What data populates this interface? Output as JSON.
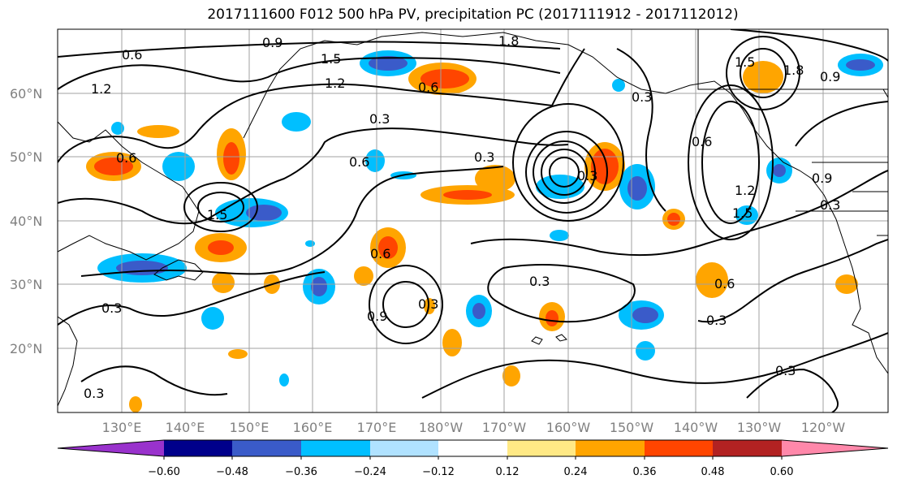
{
  "title": "2017111600 F012 500 hPa PV, precipitation PC (2017111912 - 2017112012)",
  "lat_labels": [
    "60°N",
    "50°N",
    "40°N",
    "30°N",
    "20°N"
  ],
  "lon_labels": [
    "130°E",
    "140°E",
    "150°E",
    "160°E",
    "170°E",
    "180°W",
    "170°W",
    "160°W",
    "150°W",
    "140°W",
    "130°W",
    "120°W"
  ],
  "contour_labels": [
    "0.6",
    "0.9",
    "1.5",
    "1.2",
    "1.2",
    "0.6",
    "0.3",
    "0.6",
    "0.3",
    "1.5",
    "0.6",
    "0.3",
    "0.3",
    "0.9",
    "0.3",
    "0.3",
    "1.8",
    "1.5",
    "0.3",
    "0.6",
    "1.2",
    "1.5",
    "1.8",
    "0.9",
    "0.9",
    "0.3",
    "0.6",
    "0.3",
    "0.6",
    "0.3",
    "0.3"
  ],
  "colorbar": {
    "ticks": [
      "−0.60",
      "−0.48",
      "−0.36",
      "−0.24",
      "−0.12",
      "0.12",
      "0.24",
      "0.36",
      "0.48",
      "0.60"
    ],
    "colors": [
      "#9932cc",
      "#00008b",
      "#3a5bc9",
      "#00bfff",
      "#b0e2ff",
      "#ffffff",
      "#ffe985",
      "#ffa500",
      "#ff4500",
      "#b22222",
      "#ff88aa"
    ]
  }
}
